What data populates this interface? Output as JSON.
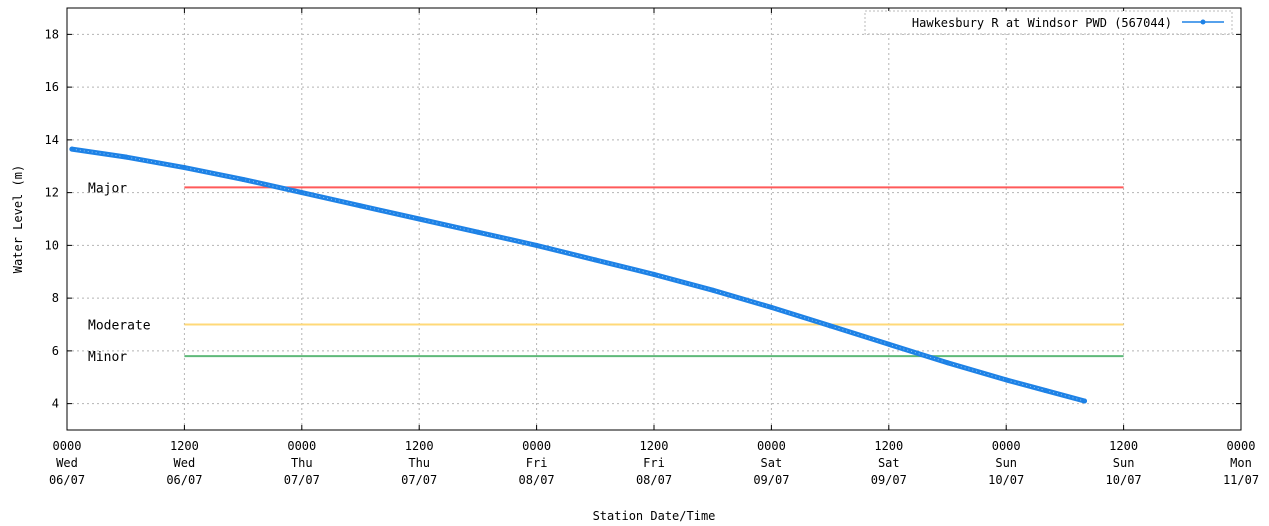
{
  "chart_data": {
    "type": "line",
    "xlabel": "Station Date/Time",
    "ylabel": "Water Level (m)",
    "ylim": [
      3,
      19
    ],
    "yticks": [
      4,
      6,
      8,
      10,
      12,
      14,
      16,
      18
    ],
    "grid": true,
    "legend_position": "top-right",
    "x_range_hours": [
      0,
      120
    ],
    "x_ticks": [
      {
        "hours": 0,
        "time": "0000",
        "day": "Wed",
        "date": "06/07"
      },
      {
        "hours": 12,
        "time": "1200",
        "day": "Wed",
        "date": "06/07"
      },
      {
        "hours": 24,
        "time": "0000",
        "day": "Thu",
        "date": "07/07"
      },
      {
        "hours": 36,
        "time": "1200",
        "day": "Thu",
        "date": "07/07"
      },
      {
        "hours": 48,
        "time": "0000",
        "day": "Fri",
        "date": "08/07"
      },
      {
        "hours": 60,
        "time": "1200",
        "day": "Fri",
        "date": "08/07"
      },
      {
        "hours": 72,
        "time": "0000",
        "day": "Sat",
        "date": "09/07"
      },
      {
        "hours": 84,
        "time": "1200",
        "day": "Sat",
        "date": "09/07"
      },
      {
        "hours": 96,
        "time": "0000",
        "day": "Sun",
        "date": "10/07"
      },
      {
        "hours": 108,
        "time": "1200",
        "day": "Sun",
        "date": "10/07"
      },
      {
        "hours": 120,
        "time": "0000",
        "day": "Mon",
        "date": "11/07"
      }
    ],
    "series": [
      {
        "name": "Hawkesbury R at Windsor PWD (567044)",
        "color": "#1e82e6",
        "points": [
          {
            "x": 0.5,
            "y": 13.65
          },
          {
            "x": 6,
            "y": 13.35
          },
          {
            "x": 12,
            "y": 12.95
          },
          {
            "x": 18,
            "y": 12.5
          },
          {
            "x": 24,
            "y": 12.0
          },
          {
            "x": 30,
            "y": 11.5
          },
          {
            "x": 36,
            "y": 11.0
          },
          {
            "x": 42,
            "y": 10.5
          },
          {
            "x": 48,
            "y": 10.0
          },
          {
            "x": 54,
            "y": 9.45
          },
          {
            "x": 60,
            "y": 8.9
          },
          {
            "x": 66,
            "y": 8.3
          },
          {
            "x": 72,
            "y": 7.65
          },
          {
            "x": 78,
            "y": 6.95
          },
          {
            "x": 84,
            "y": 6.25
          },
          {
            "x": 90,
            "y": 5.55
          },
          {
            "x": 96,
            "y": 4.9
          },
          {
            "x": 100,
            "y": 4.5
          },
          {
            "x": 104,
            "y": 4.1
          }
        ]
      }
    ],
    "thresholds": [
      {
        "label": "Major",
        "value": 12.2,
        "color": "#ff5a5a",
        "x_start": 12,
        "x_end": 108
      },
      {
        "label": "Moderate",
        "value": 7.0,
        "color": "#ffd978",
        "x_start": 12,
        "x_end": 108
      },
      {
        "label": "Minor",
        "value": 5.8,
        "color": "#5fb97a",
        "x_start": 12,
        "x_end": 108
      }
    ]
  }
}
